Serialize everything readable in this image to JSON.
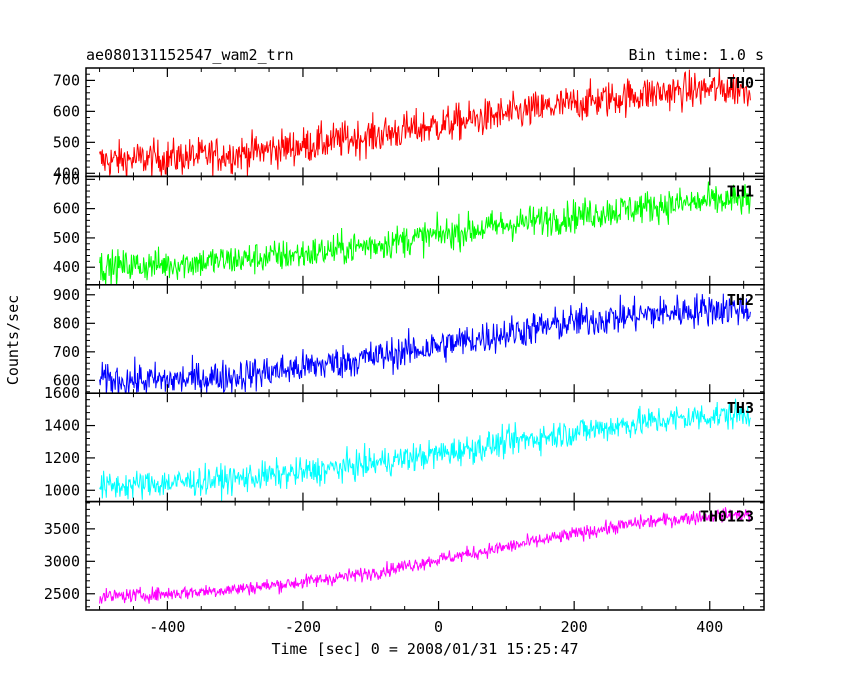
{
  "chart_data": {
    "type": "line",
    "title": "ae080131152547_wam2_trn",
    "subtitle": "Bin time: 1.0 s",
    "xlabel": "Time [sec] 0 = 2008/01/31 15:25:47",
    "ylabel": "Counts/sec",
    "xlim": [
      -520,
      480
    ],
    "x_ticks": [
      -400,
      -200,
      0,
      200,
      400
    ],
    "grid": false,
    "legend": "none",
    "panels": [
      {
        "name": "TH0",
        "color": "#ff0000",
        "ylim": [
          390,
          740
        ],
        "y_ticks": [
          400,
          500,
          600,
          700
        ],
        "noise_sd": 30,
        "trend": [
          {
            "x": -500,
            "y": 440
          },
          {
            "x": -400,
            "y": 450
          },
          {
            "x": -300,
            "y": 462
          },
          {
            "x": -200,
            "y": 490
          },
          {
            "x": -100,
            "y": 520
          },
          {
            "x": 0,
            "y": 555
          },
          {
            "x": 100,
            "y": 590
          },
          {
            "x": 200,
            "y": 625
          },
          {
            "x": 300,
            "y": 655
          },
          {
            "x": 400,
            "y": 672
          },
          {
            "x": 460,
            "y": 675
          }
        ]
      },
      {
        "name": "TH1",
        "color": "#00ff00",
        "ylim": [
          340,
          710
        ],
        "y_ticks": [
          400,
          500,
          600,
          700
        ],
        "noise_sd": 28,
        "trend": [
          {
            "x": -500,
            "y": 400
          },
          {
            "x": -400,
            "y": 410
          },
          {
            "x": -300,
            "y": 425
          },
          {
            "x": -200,
            "y": 445
          },
          {
            "x": -100,
            "y": 475
          },
          {
            "x": 0,
            "y": 510
          },
          {
            "x": 100,
            "y": 545
          },
          {
            "x": 200,
            "y": 575
          },
          {
            "x": 300,
            "y": 605
          },
          {
            "x": 400,
            "y": 625
          },
          {
            "x": 460,
            "y": 630
          }
        ]
      },
      {
        "name": "TH2",
        "color": "#0000ff",
        "ylim": [
          555,
          935
        ],
        "y_ticks": [
          600,
          700,
          800,
          900
        ],
        "noise_sd": 30,
        "trend": [
          {
            "x": -500,
            "y": 600
          },
          {
            "x": -400,
            "y": 600
          },
          {
            "x": -300,
            "y": 615
          },
          {
            "x": -200,
            "y": 645
          },
          {
            "x": -100,
            "y": 680
          },
          {
            "x": 0,
            "y": 720
          },
          {
            "x": 100,
            "y": 765
          },
          {
            "x": 200,
            "y": 805
          },
          {
            "x": 300,
            "y": 830
          },
          {
            "x": 400,
            "y": 850
          },
          {
            "x": 460,
            "y": 850
          }
        ]
      },
      {
        "name": "TH3",
        "color": "#00ffff",
        "ylim": [
          930,
          1600
        ],
        "y_ticks": [
          1000,
          1200,
          1400,
          1600
        ],
        "noise_sd": 45,
        "trend": [
          {
            "x": -500,
            "y": 1020
          },
          {
            "x": -400,
            "y": 1045
          },
          {
            "x": -300,
            "y": 1070
          },
          {
            "x": -200,
            "y": 1110
          },
          {
            "x": -100,
            "y": 1165
          },
          {
            "x": 0,
            "y": 1225
          },
          {
            "x": 100,
            "y": 1295
          },
          {
            "x": 200,
            "y": 1360
          },
          {
            "x": 300,
            "y": 1420
          },
          {
            "x": 400,
            "y": 1460
          },
          {
            "x": 460,
            "y": 1470
          }
        ]
      },
      {
        "name": "TH0123",
        "color": "#ff00ff",
        "ylim": [
          2250,
          3920
        ],
        "y_ticks": [
          2500,
          3000,
          3500
        ],
        "noise_sd": 55,
        "trend": [
          {
            "x": -500,
            "y": 2450
          },
          {
            "x": -400,
            "y": 2500
          },
          {
            "x": -300,
            "y": 2570
          },
          {
            "x": -200,
            "y": 2680
          },
          {
            "x": -100,
            "y": 2820
          },
          {
            "x": 0,
            "y": 3030
          },
          {
            "x": 100,
            "y": 3220
          },
          {
            "x": 200,
            "y": 3420
          },
          {
            "x": 300,
            "y": 3600
          },
          {
            "x": 400,
            "y": 3700
          },
          {
            "x": 460,
            "y": 3720
          }
        ]
      }
    ]
  }
}
